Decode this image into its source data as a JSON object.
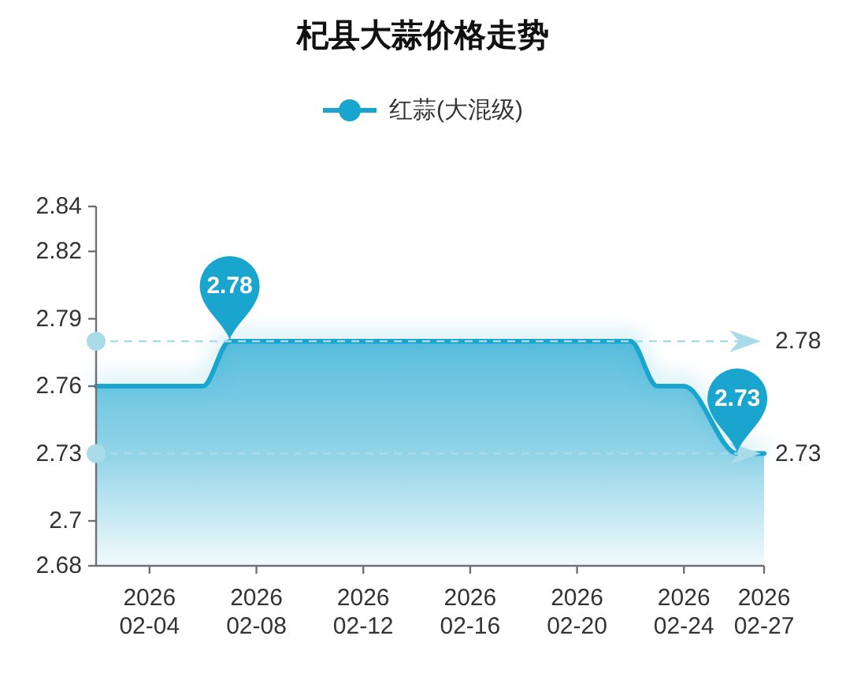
{
  "chart_data": {
    "type": "area",
    "title": "杞县大蒜价格走势",
    "series": [
      {
        "name": "红蒜(大混级)",
        "color": "#1aa5cf",
        "x": [
          "2026-02-02",
          "2026-02-06",
          "2026-02-07",
          "2026-02-22",
          "2026-02-23",
          "2026-02-24",
          "2026-02-26",
          "2026-02-27"
        ],
        "values": [
          2.76,
          2.76,
          2.78,
          2.78,
          2.76,
          2.76,
          2.73,
          2.73
        ]
      }
    ],
    "xlim": [
      "2026-02-02",
      "2026-02-27"
    ],
    "xticks": [
      {
        "value": "2026-02-04",
        "label": "2026\n02-04"
      },
      {
        "value": "2026-02-08",
        "label": "2026\n02-08"
      },
      {
        "value": "2026-02-12",
        "label": "2026\n02-12"
      },
      {
        "value": "2026-02-16",
        "label": "2026\n02-16"
      },
      {
        "value": "2026-02-20",
        "label": "2026\n02-20"
      },
      {
        "value": "2026-02-24",
        "label": "2026\n02-24"
      },
      {
        "value": "2026-02-27",
        "label": "2026\n02-27"
      }
    ],
    "ylim": [
      2.68,
      2.84
    ],
    "yticks": [
      2.68,
      2.7,
      2.73,
      2.76,
      2.79,
      2.82,
      2.84
    ],
    "ref_lines": [
      {
        "axis": "y",
        "value": 2.78,
        "label": "2.78",
        "color": "#a9dbe9",
        "line_style": "dashed"
      },
      {
        "axis": "y",
        "value": 2.73,
        "label": "2.73",
        "color": "#a9dbe9",
        "line_style": "dashed"
      }
    ],
    "annotations": [
      {
        "text": "2.78",
        "x": "2026-02-07",
        "y": 2.78
      },
      {
        "text": "2.73",
        "x": "2026-02-26",
        "y": 2.73
      }
    ],
    "legend": "top"
  }
}
